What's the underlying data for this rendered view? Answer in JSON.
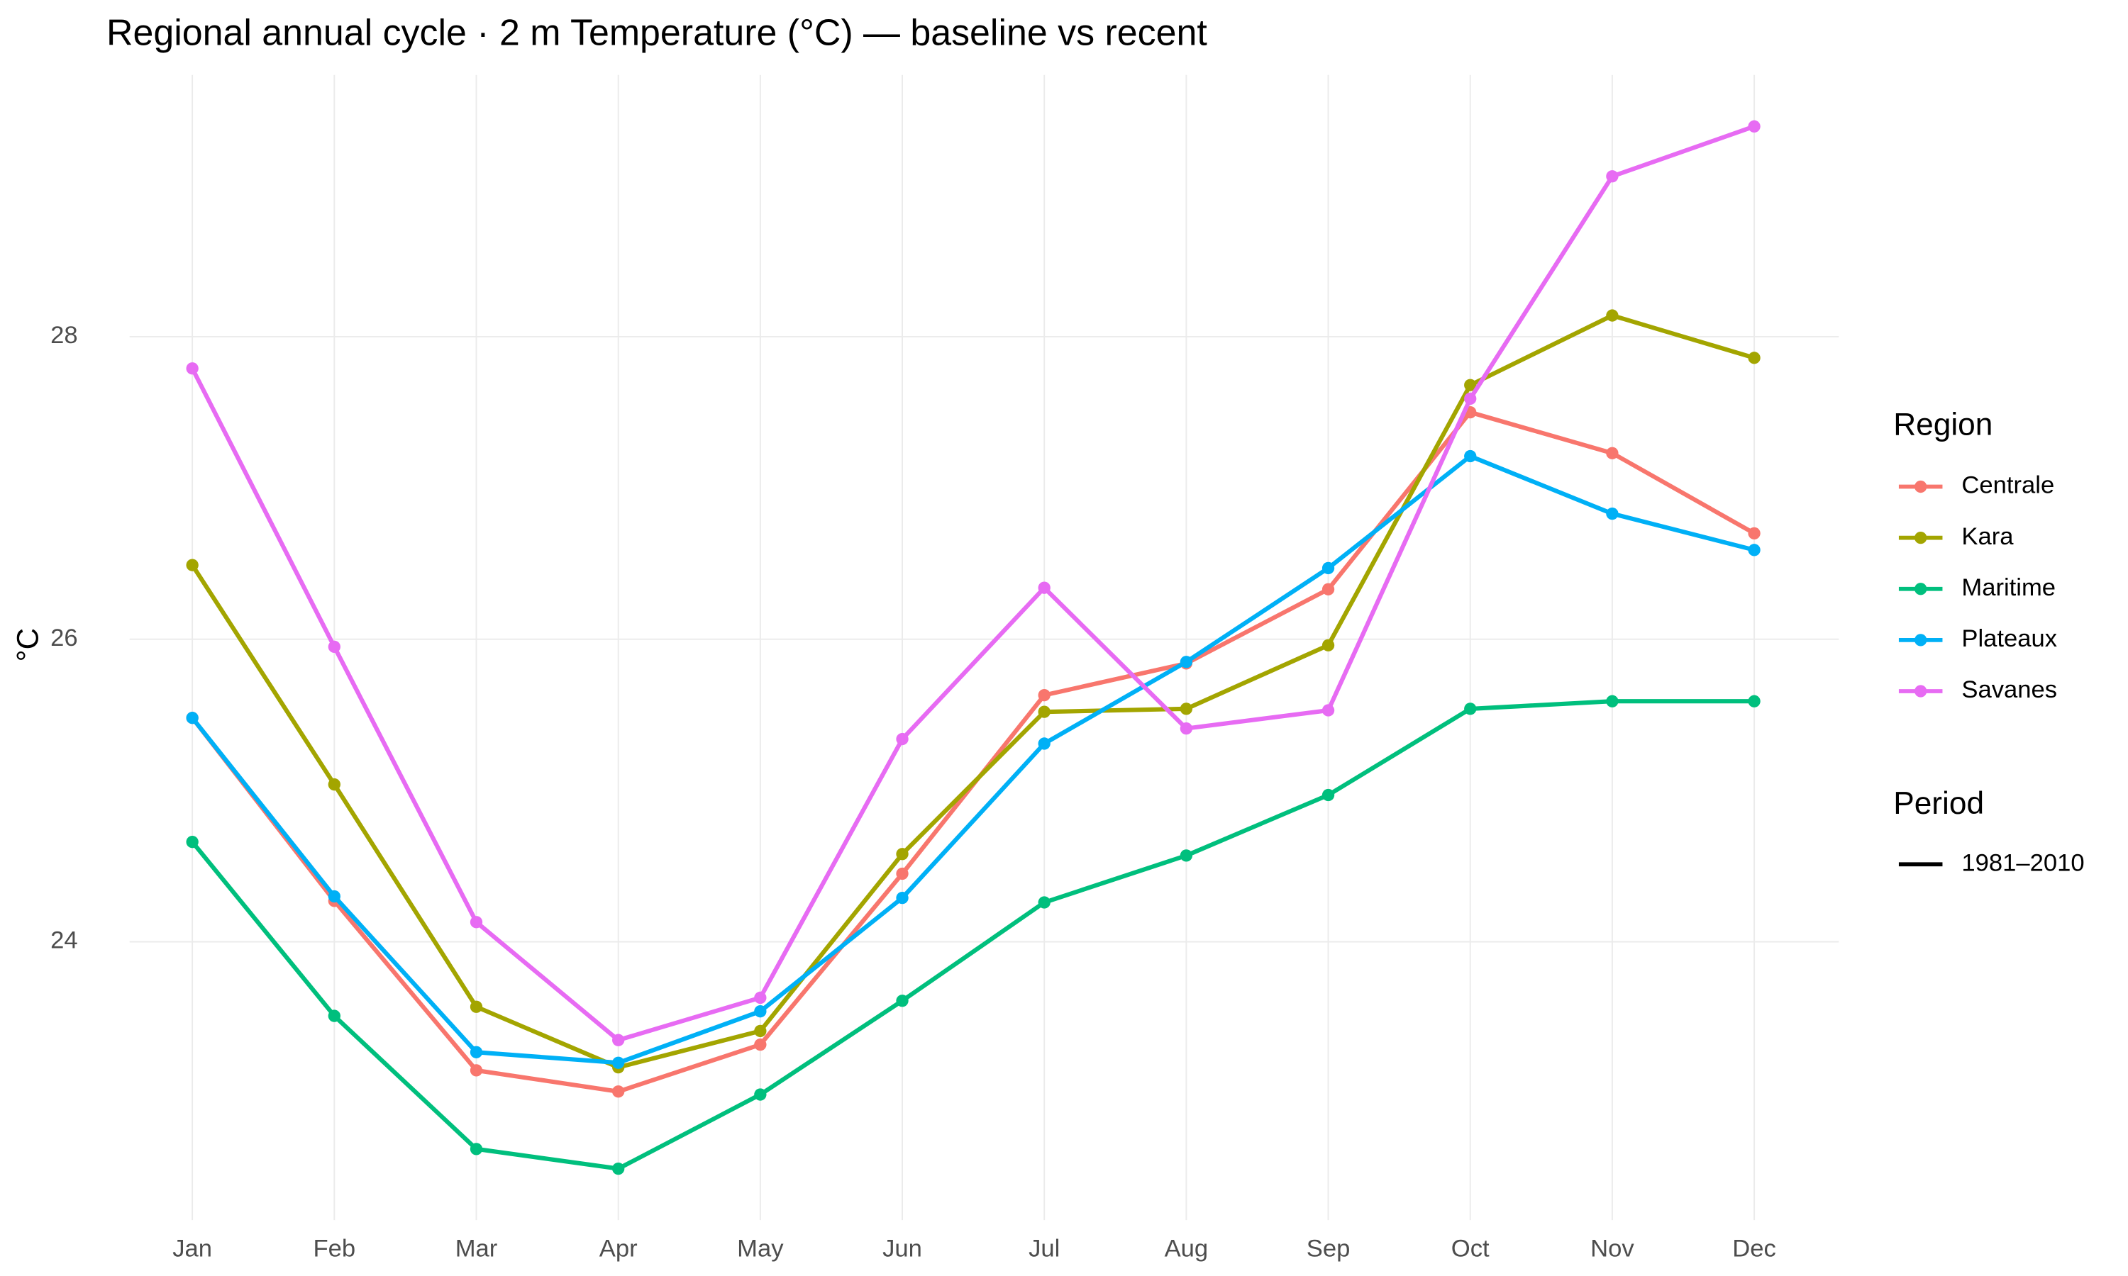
{
  "chart_data": {
    "type": "line",
    "title": "Regional annual cycle · 2 m Temperature (°C) — baseline vs recent",
    "y_label": "°C",
    "categories": [
      "Jan",
      "Feb",
      "Mar",
      "Apr",
      "May",
      "Jun",
      "Jul",
      "Aug",
      "Sep",
      "Oct",
      "Nov",
      "Dec"
    ],
    "series": [
      {
        "name": "Centrale",
        "color": "#F8766D",
        "values": [
          25.48,
          24.27,
          23.15,
          23.01,
          23.32,
          24.45,
          25.63,
          25.84,
          26.33,
          27.5,
          27.23,
          26.7
        ]
      },
      {
        "name": "Kara",
        "color": "#A3A500",
        "values": [
          26.49,
          25.04,
          23.57,
          23.17,
          23.41,
          24.58,
          25.52,
          25.54,
          25.96,
          27.68,
          28.14,
          27.86
        ]
      },
      {
        "name": "Maritime",
        "color": "#00BF7D",
        "values": [
          24.66,
          23.51,
          22.63,
          22.5,
          22.99,
          23.61,
          24.26,
          24.57,
          24.97,
          25.54,
          25.59,
          25.59
        ]
      },
      {
        "name": "Plateaux",
        "color": "#00B0F6",
        "values": [
          25.48,
          24.3,
          23.27,
          23.2,
          23.54,
          24.29,
          25.31,
          25.85,
          26.47,
          27.21,
          26.83,
          26.59
        ]
      },
      {
        "name": "Savanes",
        "color": "#E76BF3",
        "values": [
          27.79,
          25.95,
          24.13,
          23.35,
          23.63,
          25.34,
          26.34,
          25.41,
          25.53,
          27.59,
          29.06,
          29.39
        ]
      }
    ],
    "ylim": [
      22.16,
      29.73
    ],
    "yticks": [
      24,
      26,
      28
    ],
    "grid": true,
    "legend_title": "Region",
    "period_title": "Period",
    "period_labels": [
      "1981–2010"
    ]
  }
}
